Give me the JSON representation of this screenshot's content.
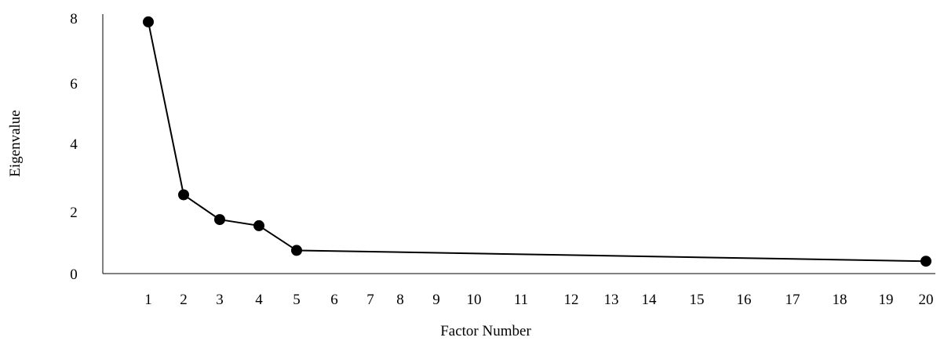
{
  "chart_data": {
    "type": "line",
    "xlabel": "Factor Number",
    "ylabel": "Eigenvalue",
    "x_tick_labels": [
      "1",
      "2",
      "3",
      "4",
      "5",
      "6",
      "7",
      "8",
      "9",
      "10",
      "11",
      "12",
      "13",
      "14",
      "15",
      "16",
      "17",
      "18",
      "19",
      "20"
    ],
    "y_tick_labels": [
      "0",
      "2",
      "4",
      "6",
      "8"
    ],
    "ylim": [
      0,
      8.5
    ],
    "grid": false,
    "legend": "none",
    "series": [
      {
        "x": [
          1,
          2,
          3,
          4,
          5,
          20
        ],
        "y": [
          8.15,
          2.55,
          1.75,
          1.55,
          0.75,
          0.4
        ],
        "color": "#000000",
        "marker": "filled-circle"
      }
    ]
  }
}
